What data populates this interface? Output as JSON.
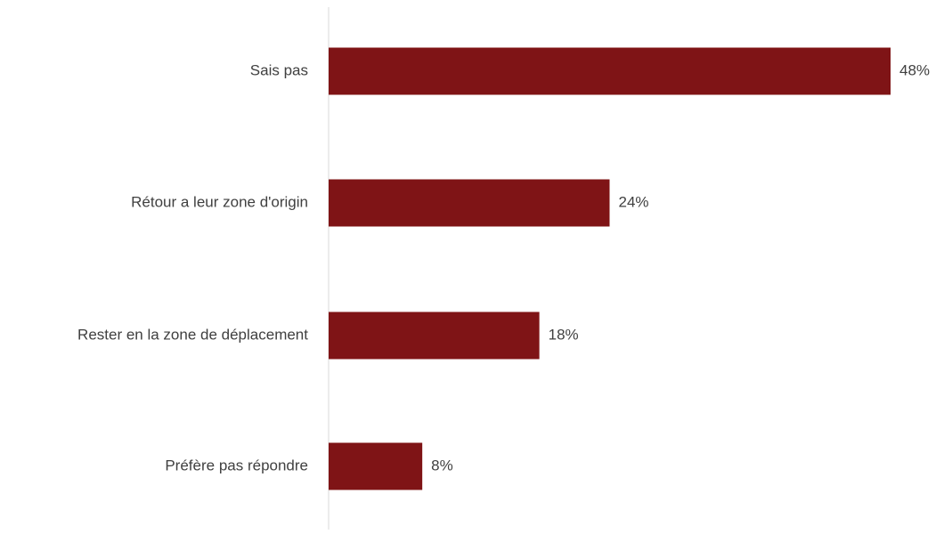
{
  "chart_data": {
    "type": "bar",
    "orientation": "horizontal",
    "categories": [
      "Sais pas",
      "Rétour a leur zone d'origin",
      "Rester en la zone de déplacement",
      "Préfère pas répondre"
    ],
    "values": [
      48,
      24,
      18,
      8
    ],
    "value_labels": [
      "48%",
      "24%",
      "18%",
      "8%"
    ],
    "value_unit": "%",
    "xlim": [
      0,
      48
    ],
    "grid": false,
    "legend": "none",
    "colors": {
      "bar": "#7f1416",
      "axis": "#d9d9d9",
      "text": "#404040"
    }
  }
}
